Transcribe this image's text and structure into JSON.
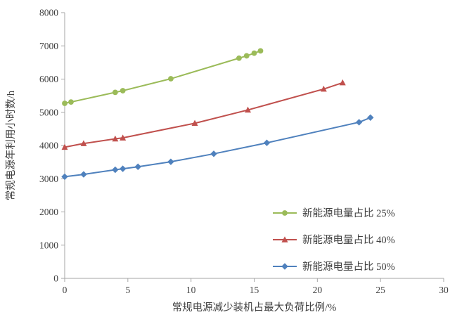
{
  "chart_data": {
    "type": "line",
    "title": "",
    "xlabel": "常规电源减少装机占最大负荷比例/%",
    "ylabel": "常规电源年利用小时数/h",
    "xlim": [
      0,
      30
    ],
    "ylim": [
      0,
      8000
    ],
    "x_ticks": [
      0,
      5,
      10,
      15,
      20,
      25,
      30
    ],
    "y_ticks": [
      0,
      1000,
      2000,
      3000,
      4000,
      5000,
      6000,
      7000,
      8000
    ],
    "grid": false,
    "legend_position": "inside-bottom-right",
    "axis_color": "#a6a6a6",
    "text_color": "#404040",
    "series": [
      {
        "name": "新能源电量占比 25%",
        "color": "#9BBB59",
        "marker": "circle",
        "x": [
          0,
          0.5,
          4,
          4.6,
          8.4,
          13.8,
          14.4,
          15,
          15.5
        ],
        "y": [
          5270,
          5310,
          5600,
          5650,
          6010,
          6630,
          6700,
          6780,
          6850
        ]
      },
      {
        "name": "新能源电量占比 40%",
        "color": "#C0504D",
        "marker": "triangle",
        "x": [
          0,
          1.5,
          4,
          4.6,
          10.3,
          14.5,
          20.5,
          22
        ],
        "y": [
          3950,
          4060,
          4200,
          4230,
          4670,
          5070,
          5700,
          5890
        ]
      },
      {
        "name": "新能源电量占比 50%",
        "color": "#4F81BD",
        "marker": "diamond",
        "x": [
          0,
          1.5,
          4,
          4.6,
          5.8,
          8.4,
          11.8,
          16,
          23.3,
          24.2
        ],
        "y": [
          3060,
          3130,
          3270,
          3300,
          3360,
          3510,
          3750,
          4080,
          4700,
          4840
        ]
      }
    ]
  }
}
